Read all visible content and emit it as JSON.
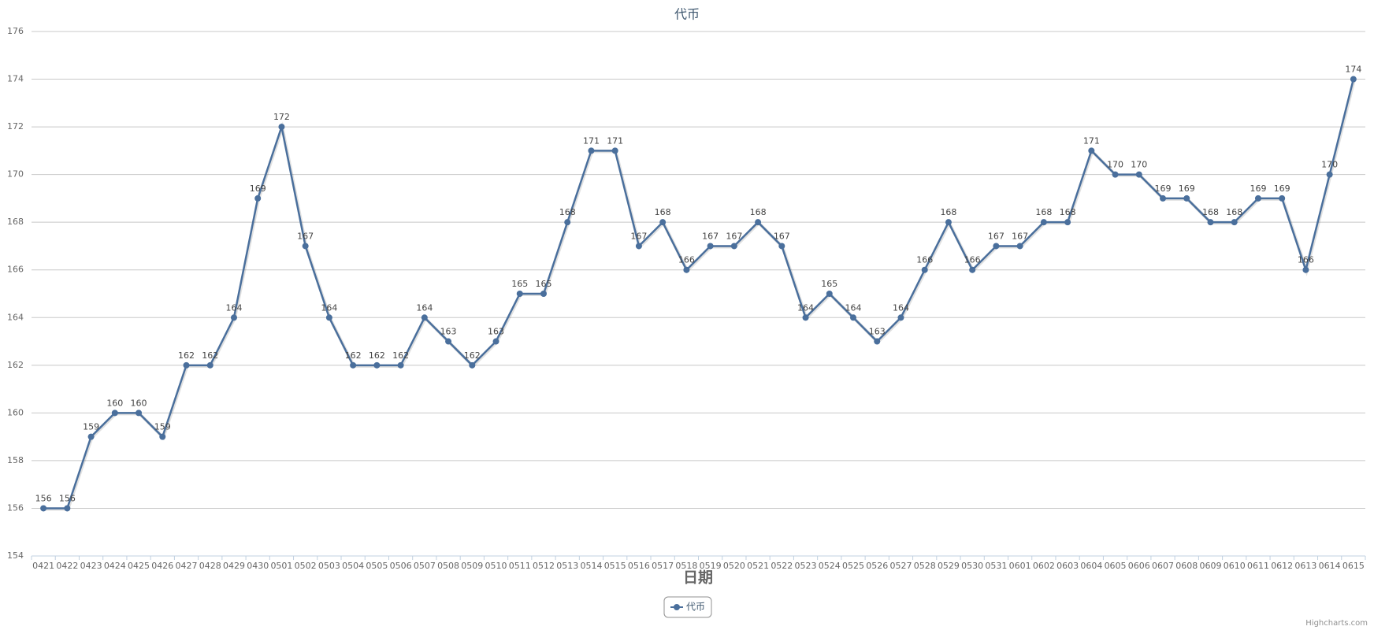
{
  "chart_data": {
    "type": "line",
    "title": "代币",
    "x_label": "日期",
    "credits": "Highcharts.com",
    "categories": [
      "0421",
      "0422",
      "0423",
      "0424",
      "0425",
      "0426",
      "0427",
      "0428",
      "0429",
      "0430",
      "0501",
      "0502",
      "0503",
      "0504",
      "0505",
      "0506",
      "0507",
      "0508",
      "0509",
      "0510",
      "0511",
      "0512",
      "0513",
      "0514",
      "0515",
      "0516",
      "0517",
      "0518",
      "0519",
      "0520",
      "0521",
      "0522",
      "0523",
      "0524",
      "0525",
      "0526",
      "0527",
      "0528",
      "0529",
      "0530",
      "0531",
      "0601",
      "0602",
      "0603",
      "0604",
      "0605",
      "0606",
      "0607",
      "0608",
      "0609",
      "0610",
      "0611",
      "0612",
      "0613",
      "0614",
      "0615"
    ],
    "series": [
      {
        "name": "代币",
        "color": "#4a6f9c",
        "values": [
          156,
          156,
          159,
          160,
          160,
          159,
          162,
          162,
          164,
          169,
          172,
          167,
          164,
          162,
          162,
          162,
          164,
          163,
          162,
          163,
          165,
          165,
          168,
          171,
          171,
          167,
          168,
          166,
          167,
          167,
          168,
          167,
          164,
          165,
          164,
          163,
          164,
          166,
          168,
          166,
          167,
          167,
          168,
          168,
          171,
          170,
          170,
          169,
          169,
          168,
          168,
          169,
          169,
          166,
          170,
          174
        ]
      }
    ],
    "ylim": [
      154,
      176
    ],
    "yticks": [
      154,
      156,
      158,
      160,
      162,
      164,
      166,
      168,
      170,
      172,
      174,
      176
    ],
    "grid": true,
    "legend": "bottom"
  }
}
